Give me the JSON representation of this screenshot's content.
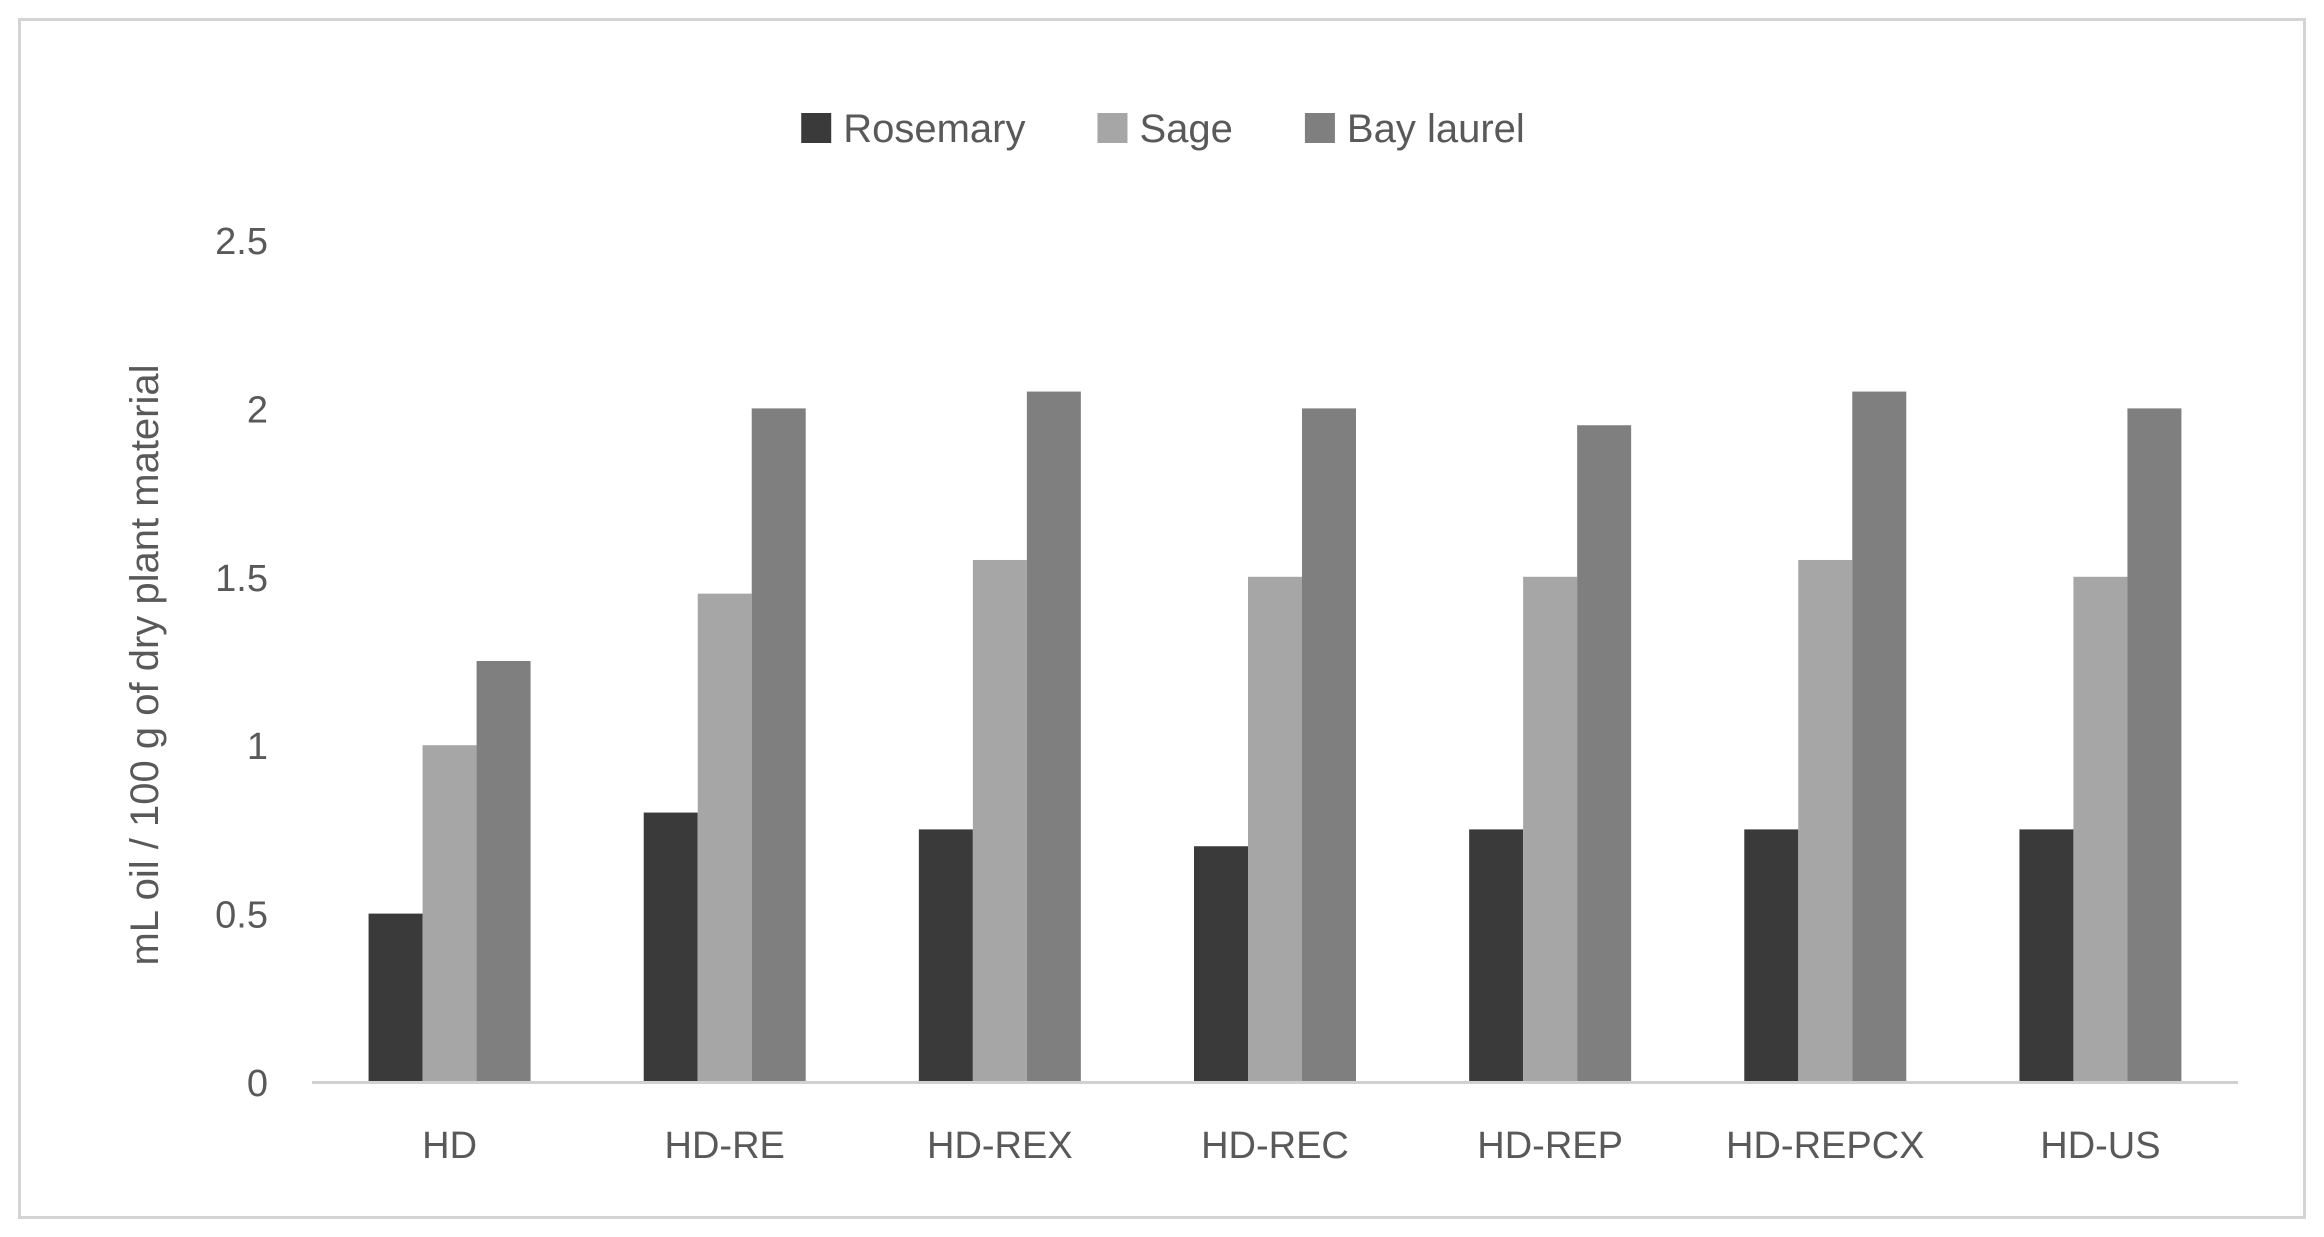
{
  "chart_data": {
    "type": "bar",
    "title": "",
    "xlabel": "",
    "ylabel": "mL oil / 100 g of dry plant material",
    "categories": [
      "HD",
      "HD-RE",
      "HD-REX",
      "HD-REC",
      "HD-REP",
      "HD-REPCX",
      "HD-US"
    ],
    "series": [
      {
        "name": "Rosemary",
        "color": "#3a3a3a",
        "values": [
          0.5,
          0.8,
          0.75,
          0.7,
          0.75,
          0.75,
          0.75
        ]
      },
      {
        "name": "Sage",
        "color": "#a6a6a6",
        "values": [
          1.0,
          1.45,
          1.55,
          1.5,
          1.5,
          1.55,
          1.5
        ]
      },
      {
        "name": "Bay laurel",
        "color": "#7f7f7f",
        "values": [
          1.25,
          2.0,
          2.05,
          2.0,
          1.95,
          2.05,
          2.0
        ]
      }
    ],
    "ylim": [
      0,
      2.5
    ],
    "yticks": [
      "0",
      "0.5",
      "1",
      "1.5",
      "2",
      "2.5"
    ],
    "grid": false,
    "legend_position": "top-center"
  }
}
